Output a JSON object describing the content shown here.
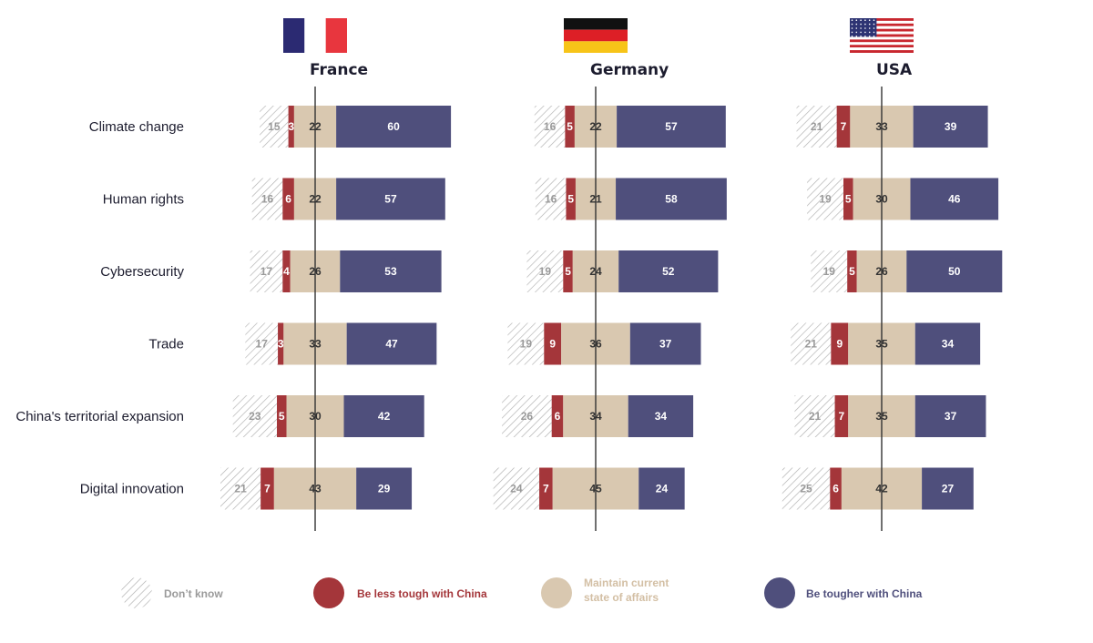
{
  "colors": {
    "dont_know_stroke": "#b0b0b0",
    "less_tough": "#a4363a",
    "maintain": "#d9c8b0",
    "tougher": "#4f4f7c",
    "axis": "#333333",
    "label": "#1c1c2e",
    "dont_know_text": "#9a9a9a",
    "legend_dont_know_text": "#9a9a9a",
    "legend_less_text": "#a4363a",
    "legend_maintain_text": "#d3bfa4",
    "legend_tougher_text": "#4f4f7c"
  },
  "chart_data": {
    "type": "bar",
    "stacked": true,
    "diverging": true,
    "categories": [
      "Climate change",
      "Human rights",
      "Cybersecurity",
      "Trade",
      "China's territorial expansion",
      "Digital innovation"
    ],
    "series_names": [
      "Don’t know",
      "Be less tough with China",
      "Maintain current state of affairs",
      "Be tougher with China"
    ],
    "panels": [
      {
        "country": "France",
        "flag": "france-flag",
        "dont_know": [
          15,
          16,
          17,
          17,
          23,
          21
        ],
        "less_tough": [
          3,
          6,
          4,
          3,
          5,
          7
        ],
        "maintain": [
          22,
          22,
          26,
          33,
          30,
          43
        ],
        "tougher": [
          60,
          57,
          53,
          47,
          42,
          29
        ]
      },
      {
        "country": "Germany",
        "flag": "germany-flag",
        "dont_know": [
          16,
          16,
          19,
          19,
          26,
          24
        ],
        "less_tough": [
          5,
          5,
          5,
          9,
          6,
          7
        ],
        "maintain": [
          22,
          21,
          24,
          36,
          34,
          45
        ],
        "tougher": [
          57,
          58,
          52,
          37,
          34,
          24
        ]
      },
      {
        "country": "USA",
        "flag": "usa-flag",
        "dont_know": [
          21,
          19,
          19,
          21,
          21,
          25
        ],
        "less_tough": [
          7,
          5,
          5,
          9,
          7,
          6
        ],
        "maintain": [
          33,
          30,
          26,
          35,
          35,
          42
        ],
        "tougher": [
          39,
          46,
          50,
          34,
          37,
          27
        ]
      }
    ],
    "legend": [
      {
        "key": "dont_know",
        "label": "Don’t know"
      },
      {
        "key": "less_tough",
        "label": "Be less tough with China"
      },
      {
        "key": "maintain",
        "label": "Maintain current\nstate of affairs"
      },
      {
        "key": "tougher",
        "label": "Be tougher with China"
      }
    ]
  }
}
